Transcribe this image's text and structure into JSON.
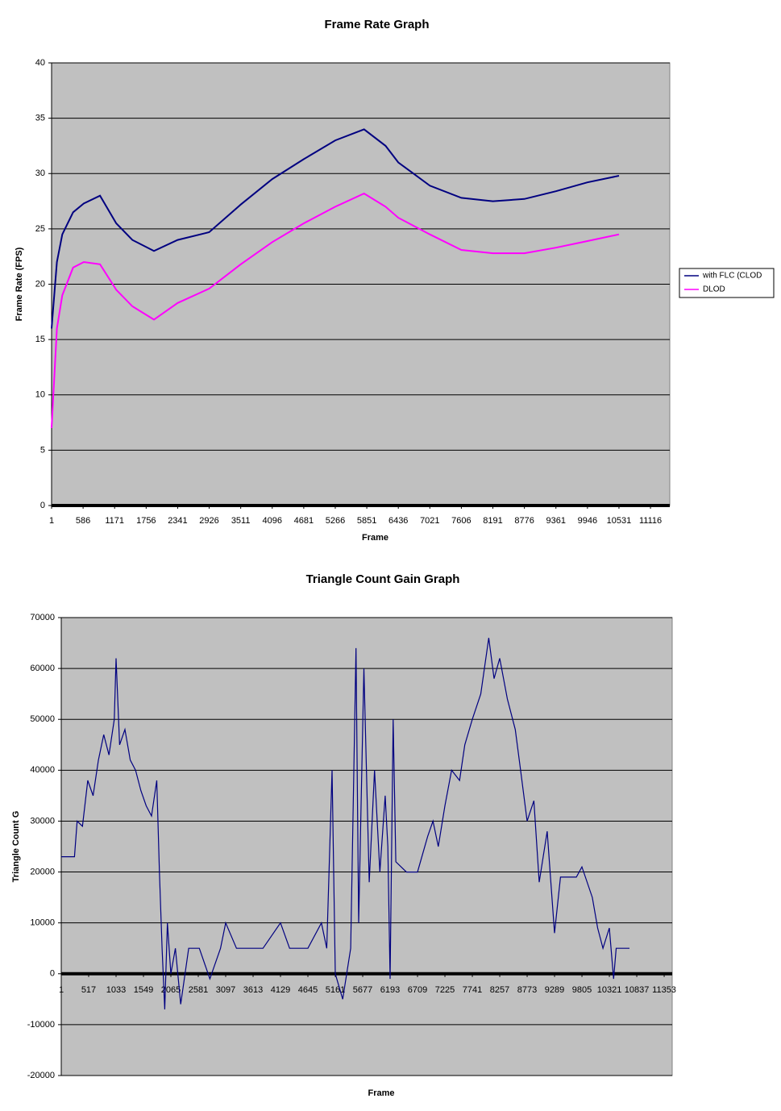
{
  "chart_data": [
    {
      "type": "line",
      "title": "Frame Rate Graph",
      "x_label": "Frame",
      "y_label": "Frame Rate (FPS)",
      "x": [
        1,
        100,
        200,
        400,
        600,
        900,
        1200,
        1500,
        1900,
        2341,
        2926,
        3511,
        4096,
        4681,
        5266,
        5800,
        6200,
        6436,
        7021,
        7606,
        8191,
        8776,
        9361,
        9946,
        10531
      ],
      "series": [
        {
          "name": "with FLC (CLOD",
          "color": "#000080",
          "values": [
            16,
            22,
            24.5,
            26.5,
            27.3,
            28,
            25.5,
            24,
            23,
            24,
            24.7,
            27.2,
            29.5,
            31.3,
            33,
            34,
            32.5,
            31,
            28.9,
            27.8,
            27.5,
            27.7,
            28.4,
            29.2,
            29.8
          ]
        },
        {
          "name": "DLOD",
          "color": "#ff00ff",
          "values": [
            7,
            16,
            19,
            21.5,
            22,
            21.8,
            19.5,
            18,
            16.8,
            18.3,
            19.6,
            21.8,
            23.8,
            25.5,
            27,
            28.2,
            27,
            26,
            24.5,
            23.1,
            22.8,
            22.8,
            23.3,
            23.9,
            24.5
          ]
        }
      ],
      "xlim": [
        1,
        11474
      ],
      "xticks": [
        1,
        586,
        1171,
        1756,
        2341,
        2926,
        3511,
        4096,
        4681,
        5266,
        5851,
        6436,
        7021,
        7606,
        8191,
        8776,
        9361,
        9946,
        10531,
        11116
      ],
      "ylim": [
        0,
        40
      ],
      "yticks": [
        0,
        5,
        10,
        15,
        20,
        25,
        30,
        35,
        40
      ],
      "grid": true,
      "legend": "right"
    },
    {
      "type": "line",
      "title": "Triangle Count Gain Graph",
      "x_label": "Frame",
      "y_label": "Triangle Count G",
      "x": [
        1,
        250,
        300,
        400,
        500,
        600,
        700,
        800,
        900,
        1000,
        1033,
        1100,
        1200,
        1300,
        1400,
        1500,
        1600,
        1700,
        1800,
        1850,
        1900,
        1950,
        2000,
        2065,
        2150,
        2250,
        2400,
        2600,
        2800,
        3000,
        3097,
        3300,
        3800,
        4129,
        4300,
        4645,
        4900,
        5000,
        5100,
        5161,
        5300,
        5450,
        5550,
        5600,
        5700,
        5800,
        5900,
        6000,
        6100,
        6150,
        6193,
        6250,
        6300,
        6500,
        6709,
        6900,
        7000,
        7100,
        7225,
        7350,
        7500,
        7600,
        7741,
        7900,
        8050,
        8150,
        8257,
        8400,
        8550,
        8650,
        8773,
        8900,
        9000,
        9150,
        9289,
        9400,
        9700,
        9805,
        10000,
        10100,
        10200,
        10321,
        10400,
        10450,
        10700
      ],
      "series": [
        {
          "name": "Triangle Count",
          "color": "#000080",
          "values": [
            23000,
            23000,
            30000,
            29000,
            38000,
            35000,
            42000,
            47000,
            43000,
            50000,
            62000,
            45000,
            48000,
            42000,
            40000,
            36000,
            33000,
            31000,
            38000,
            20000,
            5000,
            -7000,
            10000,
            0,
            5000,
            -6000,
            5000,
            5000,
            -1000,
            5000,
            10000,
            5000,
            5000,
            10000,
            5000,
            5000,
            10000,
            5000,
            40000,
            0,
            -5000,
            5000,
            64000,
            10000,
            60000,
            18000,
            40000,
            20000,
            35000,
            25000,
            -1000,
            50000,
            22000,
            20000,
            20000,
            27000,
            30000,
            25000,
            33000,
            40000,
            38000,
            45000,
            50000,
            55000,
            66000,
            58000,
            62000,
            54000,
            48000,
            40000,
            30000,
            34000,
            18000,
            28000,
            8000,
            19000,
            19000,
            21000,
            15000,
            9000,
            5000,
            9000,
            -1000,
            5000,
            5000
          ]
        }
      ],
      "xlim": [
        1,
        11504
      ],
      "xticks": [
        1,
        517,
        1033,
        1549,
        2065,
        2581,
        3097,
        3613,
        4129,
        4645,
        5161,
        5677,
        6193,
        6709,
        7225,
        7741,
        8257,
        8773,
        9289,
        9805,
        10321,
        10837,
        11353
      ],
      "ylim": [
        -20000,
        70000
      ],
      "yticks": [
        -20000,
        -10000,
        0,
        10000,
        20000,
        30000,
        40000,
        50000,
        60000,
        70000
      ],
      "grid": true
    }
  ]
}
